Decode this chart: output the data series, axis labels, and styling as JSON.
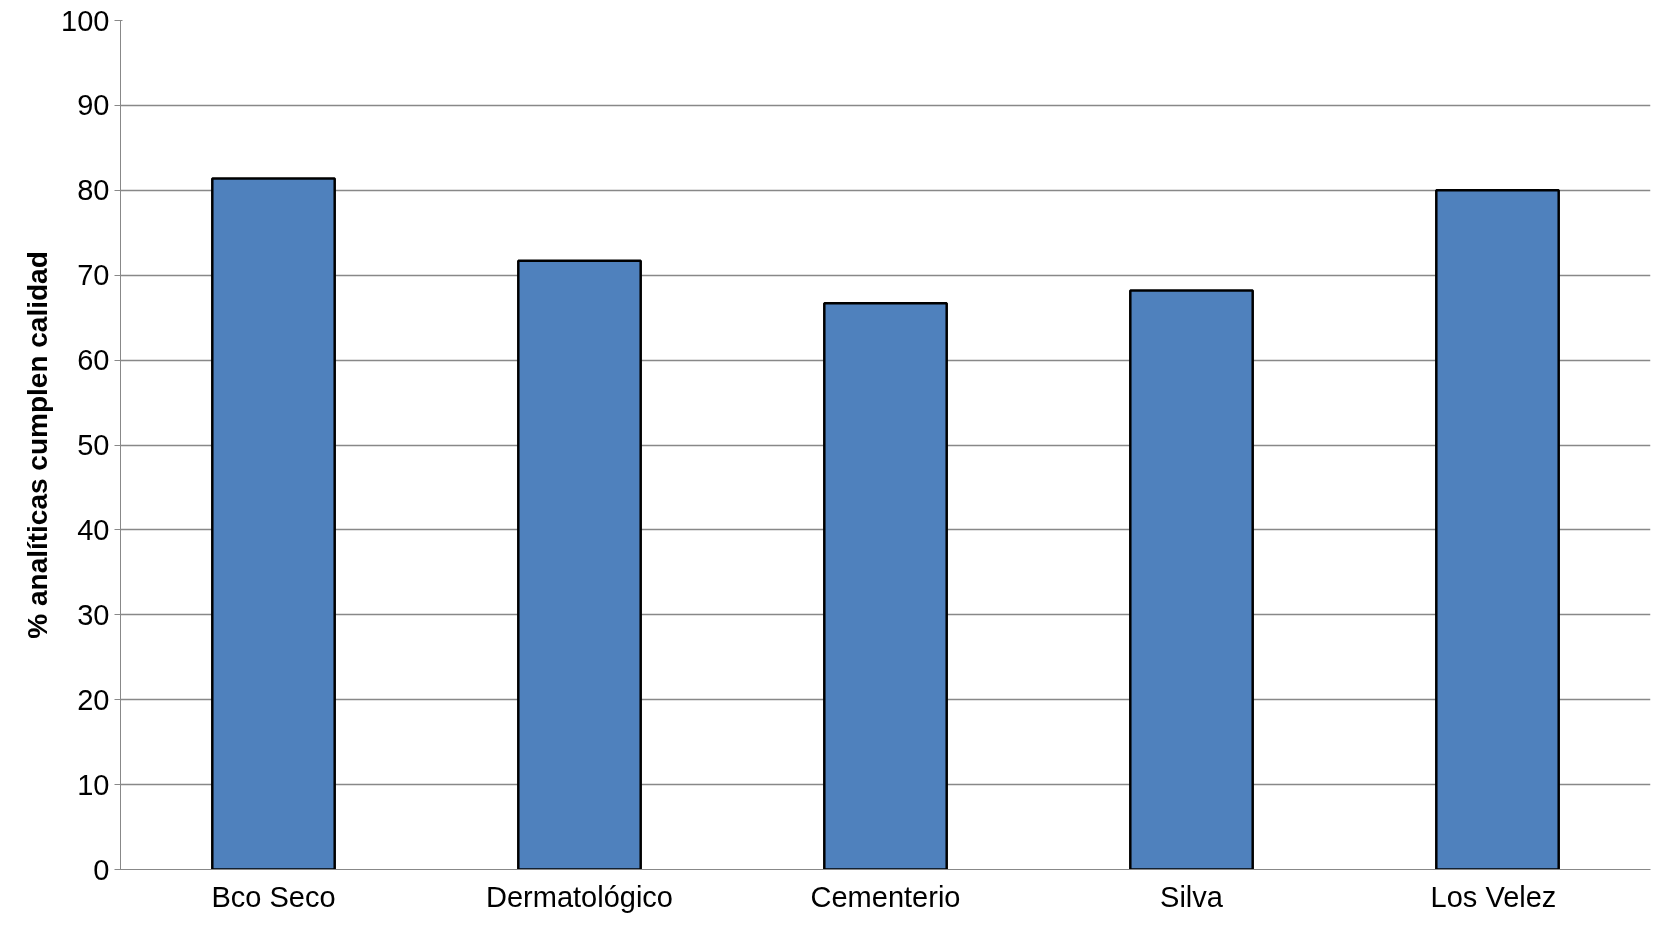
{
  "chart_data": {
    "type": "bar",
    "ylabel": "% analíticas cumplen calidad",
    "categories": [
      "Bco Seco",
      "Dermatológico",
      "Cementerio",
      "Silva",
      "Los  Velez"
    ],
    "values": [
      81.4,
      71.7,
      66.7,
      68.2,
      80.0
    ],
    "color": "#4f81bd",
    "ylim": [
      0,
      100
    ],
    "yticks": [
      0,
      10,
      20,
      30,
      40,
      50,
      60,
      70,
      80,
      90,
      100
    ],
    "grid": "y"
  }
}
